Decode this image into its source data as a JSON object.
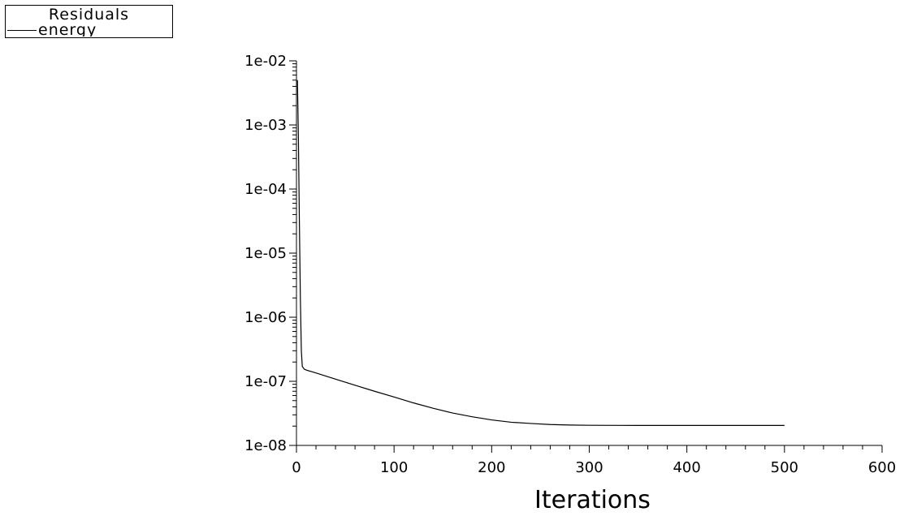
{
  "legend": {
    "title": "Residuals",
    "entries": [
      "energy"
    ]
  },
  "chart_data": {
    "type": "line",
    "title": "",
    "xlabel": "Iterations",
    "ylabel": "",
    "xlim": [
      0,
      600
    ],
    "ylim": [
      1e-08,
      0.01
    ],
    "yscale": "log",
    "grid": false,
    "legend_position": "top-left",
    "xticks": [
      0,
      100,
      200,
      300,
      400,
      500,
      600
    ],
    "xtick_labels": [
      "0",
      "100",
      "200",
      "300",
      "400",
      "500",
      "600"
    ],
    "yticks": [
      1e-08,
      1e-07,
      1e-06,
      1e-05,
      0.0001,
      0.001,
      0.01
    ],
    "ytick_labels": [
      "1e-08",
      "1e-07",
      "1e-06",
      "1e-05",
      "1e-04",
      "1e-03",
      "1e-02"
    ],
    "series": [
      {
        "name": "energy",
        "color": "#000000",
        "x": [
          1,
          2,
          3,
          4,
          5,
          6,
          8,
          10,
          20,
          40,
          60,
          80,
          100,
          120,
          140,
          160,
          180,
          200,
          220,
          240,
          260,
          280,
          300,
          350,
          400,
          450,
          500
        ],
        "y": [
          0.005,
          0.0006,
          3e-05,
          2e-06,
          3e-07,
          1.7e-07,
          1.55e-07,
          1.5e-07,
          1.35e-07,
          1.08e-07,
          8.7e-08,
          7e-08,
          5.7e-08,
          4.6e-08,
          3.8e-08,
          3.2e-08,
          2.8e-08,
          2.5e-08,
          2.3e-08,
          2.2e-08,
          2.12e-08,
          2.08e-08,
          2.06e-08,
          2.05e-08,
          2.05e-08,
          2.05e-08,
          2.05e-08
        ]
      }
    ]
  }
}
